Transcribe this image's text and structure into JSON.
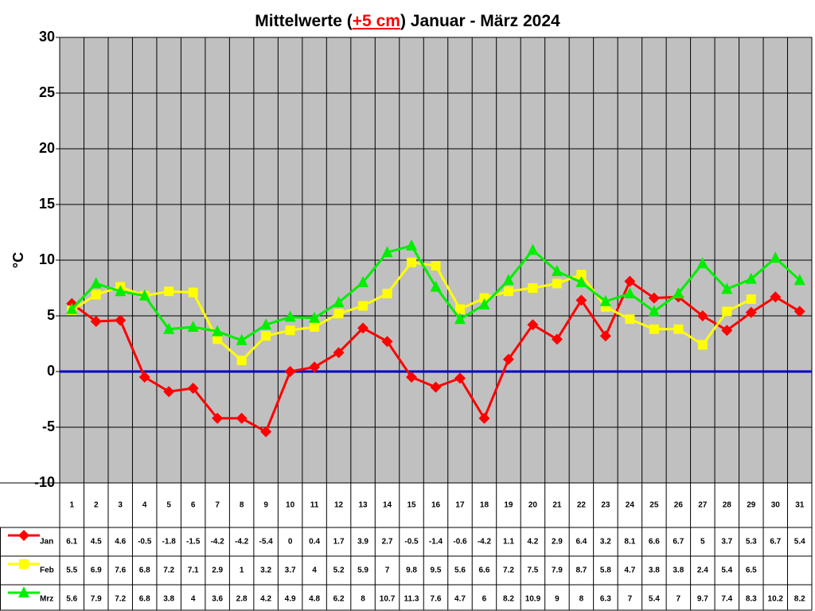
{
  "chart_data": {
    "type": "line",
    "title": [
      "Mittelwerte (",
      "+5 cm",
      ") Januar - März 2024"
    ],
    "y_label": "°C",
    "categories": [
      1,
      2,
      3,
      4,
      5,
      6,
      7,
      8,
      9,
      10,
      11,
      12,
      13,
      14,
      15,
      16,
      17,
      18,
      19,
      20,
      21,
      22,
      23,
      24,
      25,
      26,
      27,
      28,
      29,
      30,
      31
    ],
    "series": [
      {
        "name": "Jan",
        "color": "#ff0000",
        "marker": "diamond",
        "values": [
          6.1,
          4.5,
          4.6,
          -0.5,
          -1.8,
          -1.5,
          -4.2,
          -4.2,
          -5.4,
          0,
          0.4,
          1.7,
          3.9,
          2.7,
          -0.5,
          -1.4,
          -0.6,
          -4.2,
          1.1,
          4.2,
          2.9,
          6.4,
          3.2,
          8.1,
          6.6,
          6.7,
          5,
          3.7,
          5.3,
          6.7,
          5.4
        ]
      },
      {
        "name": "Feb",
        "color": "#ffff00",
        "marker": "square",
        "values": [
          5.5,
          6.9,
          7.6,
          6.8,
          7.2,
          7.1,
          2.9,
          1,
          3.2,
          3.7,
          4,
          5.2,
          5.9,
          7,
          9.8,
          9.5,
          5.6,
          6.6,
          7.2,
          7.5,
          7.9,
          8.7,
          5.8,
          4.7,
          3.8,
          3.8,
          2.4,
          5.4,
          6.5,
          null,
          null
        ]
      },
      {
        "name": "Mrz",
        "color": "#00ee00",
        "marker": "triangle",
        "values": [
          5.6,
          7.9,
          7.2,
          6.8,
          3.8,
          4,
          3.6,
          2.8,
          4.2,
          4.9,
          4.8,
          6.2,
          8,
          10.7,
          11.3,
          7.6,
          4.7,
          6,
          8.2,
          10.9,
          9,
          8,
          6.3,
          7,
          5.4,
          7,
          9.7,
          7.4,
          8.3,
          10.2,
          8.2
        ]
      }
    ],
    "ylim": [
      -10,
      30
    ],
    "yticks": [
      -10,
      -5,
      0,
      5,
      10,
      15,
      20,
      25,
      30
    ],
    "grid": true,
    "plot_background": "#c0c0c0",
    "reference_line": {
      "value": 0,
      "color": "#0000cc"
    }
  }
}
